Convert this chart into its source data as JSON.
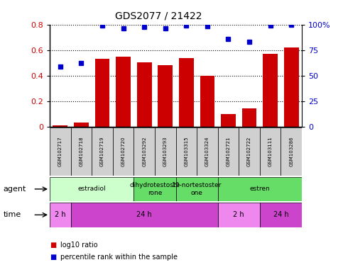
{
  "title": "GDS2077 / 21422",
  "samples": [
    "GSM102717",
    "GSM102718",
    "GSM102719",
    "GSM102720",
    "GSM103292",
    "GSM103293",
    "GSM103315",
    "GSM103324",
    "GSM102721",
    "GSM102722",
    "GSM103111",
    "GSM103286"
  ],
  "log10_ratio": [
    0.01,
    0.03,
    0.53,
    0.545,
    0.505,
    0.48,
    0.535,
    0.4,
    0.1,
    0.14,
    0.57,
    0.62
  ],
  "percentile_rank": [
    0.59,
    0.625,
    0.99,
    0.965,
    0.975,
    0.965,
    0.99,
    0.98,
    0.86,
    0.83,
    0.99,
    0.995
  ],
  "bar_color": "#cc0000",
  "dot_color": "#0000cc",
  "ylim_left": [
    0,
    0.8
  ],
  "ylim_right": [
    0,
    1.0
  ],
  "yticks_left": [
    0,
    0.2,
    0.4,
    0.6,
    0.8
  ],
  "yticks_right": [
    0,
    0.25,
    0.5,
    0.75,
    1.0
  ],
  "yticklabels_left": [
    "0",
    "0.2",
    "0.4",
    "0.6",
    "0.8"
  ],
  "yticklabels_right": [
    "0",
    "25",
    "50",
    "75",
    "100%"
  ],
  "agent_groups": [
    {
      "label": "estradiol",
      "start": 0,
      "end": 4,
      "color": "#ccffcc"
    },
    {
      "label": "dihydrotestoste\nrone",
      "start": 4,
      "end": 6,
      "color": "#66dd66"
    },
    {
      "label": "19-nortestoster\none",
      "start": 6,
      "end": 8,
      "color": "#66dd66"
    },
    {
      "label": "estren",
      "start": 8,
      "end": 12,
      "color": "#66dd66"
    }
  ],
  "time_groups": [
    {
      "label": "2 h",
      "start": 0,
      "end": 1,
      "color": "#ee88ee"
    },
    {
      "label": "24 h",
      "start": 1,
      "end": 8,
      "color": "#cc44cc"
    },
    {
      "label": "2 h",
      "start": 8,
      "end": 10,
      "color": "#ee88ee"
    },
    {
      "label": "24 h",
      "start": 10,
      "end": 12,
      "color": "#cc44cc"
    }
  ],
  "legend_red_label": "log10 ratio",
  "legend_blue_label": "percentile rank within the sample",
  "sample_box_color": "#d0d0d0"
}
